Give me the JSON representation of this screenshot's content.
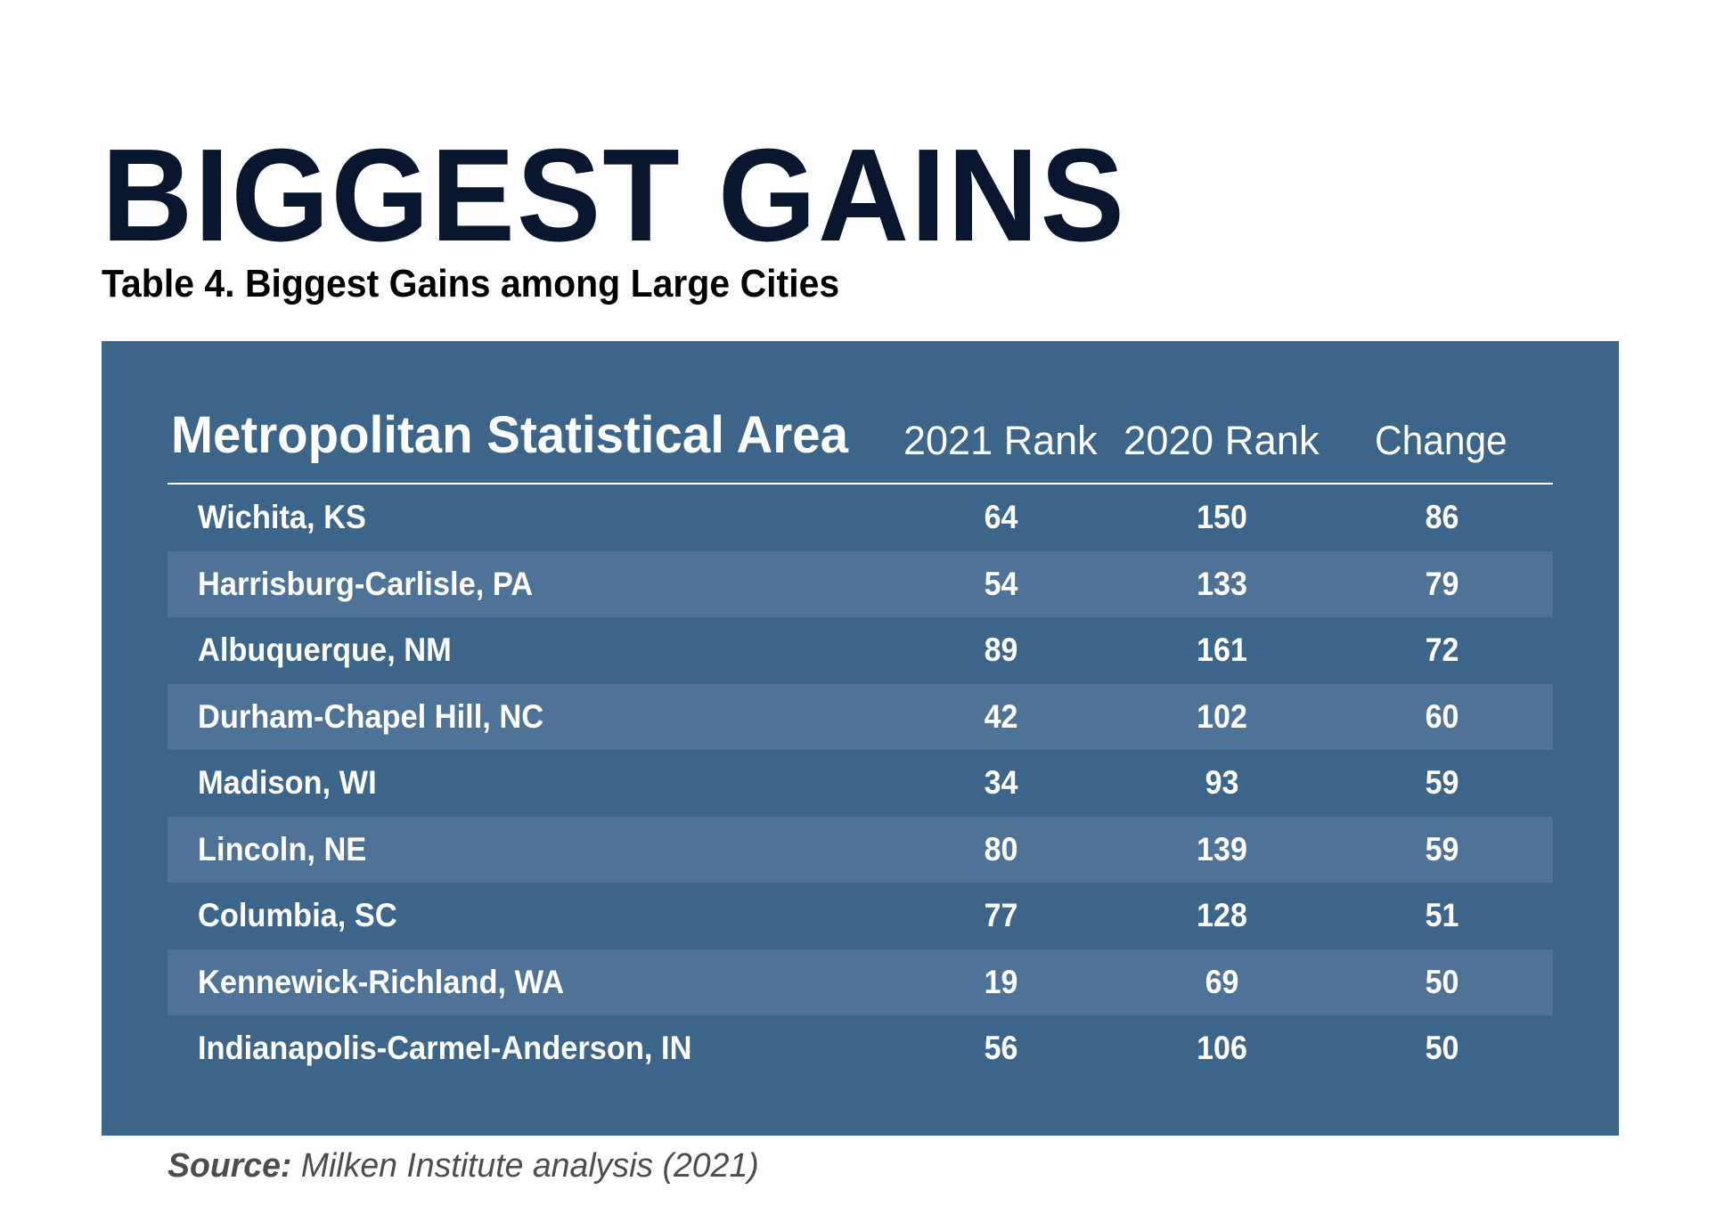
{
  "page": {
    "title": "BIGGEST GAINS",
    "caption": "Table 4. Biggest Gains among Large Cities"
  },
  "colors": {
    "title": "#0a162d",
    "panel": "#3c6589",
    "row_alt": "#4f7396",
    "text_on_panel": "#ffffff",
    "source_text": "#4d4d4d"
  },
  "table": {
    "columns": [
      "Metropolitan Statistical Area",
      "2021 Rank",
      "2020 Rank",
      "Change"
    ],
    "rows": [
      {
        "area": "Wichita, KS",
        "rank_2021": "64",
        "rank_2020": "150",
        "change": "86"
      },
      {
        "area": "Harrisburg-Carlisle, PA",
        "rank_2021": "54",
        "rank_2020": "133",
        "change": "79"
      },
      {
        "area": "Albuquerque, NM",
        "rank_2021": "89",
        "rank_2020": "161",
        "change": "72"
      },
      {
        "area": "Durham-Chapel Hill, NC",
        "rank_2021": "42",
        "rank_2020": "102",
        "change": "60"
      },
      {
        "area": "Madison, WI",
        "rank_2021": "34",
        "rank_2020": "93",
        "change": "59"
      },
      {
        "area": "Lincoln, NE",
        "rank_2021": "80",
        "rank_2020": "139",
        "change": "59"
      },
      {
        "area": "Columbia, SC",
        "rank_2021": "77",
        "rank_2020": "128",
        "change": "51"
      },
      {
        "area": "Kennewick-Richland, WA",
        "rank_2021": "19",
        "rank_2020": "69",
        "change": "50"
      },
      {
        "area": "Indianapolis-Carmel-Anderson, IN",
        "rank_2021": "56",
        "rank_2020": "106",
        "change": "50"
      }
    ]
  },
  "source": {
    "label": "Source:",
    "text": " Milken Institute analysis (2021)"
  }
}
